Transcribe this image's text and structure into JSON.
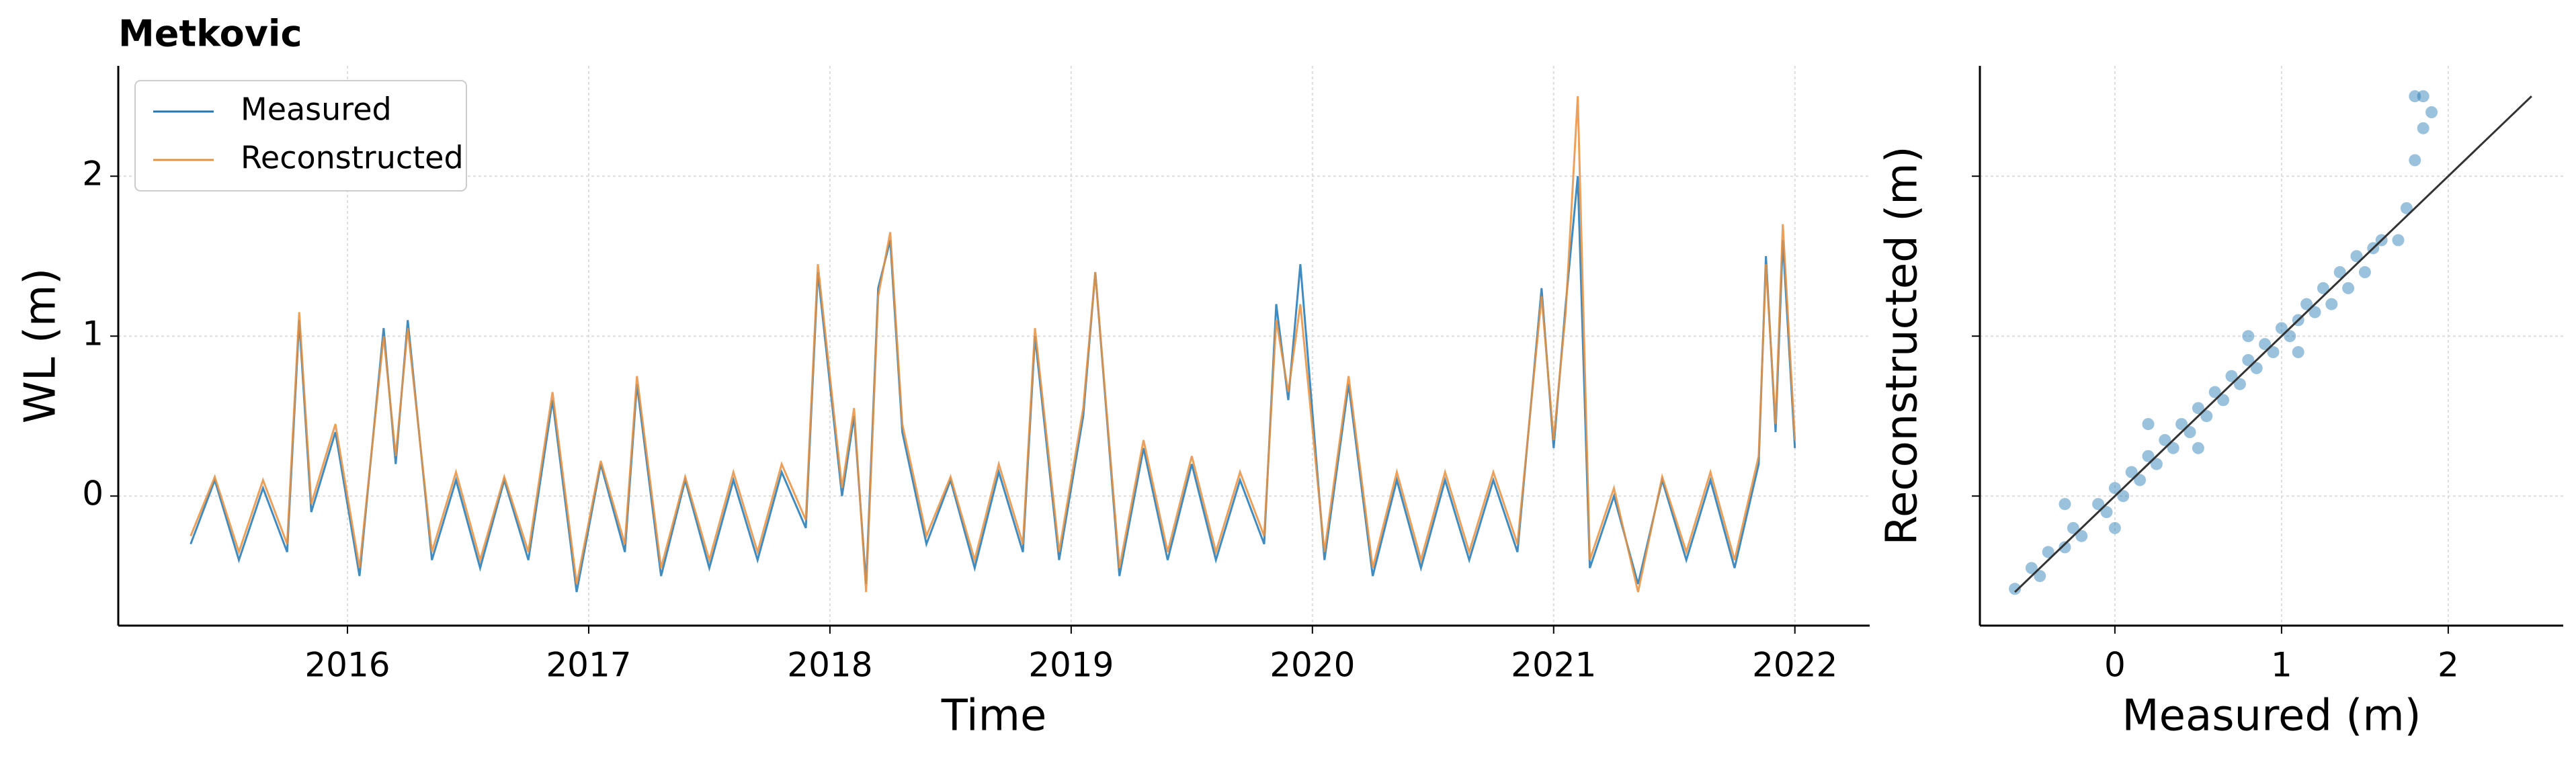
{
  "chart_data": [
    {
      "type": "line",
      "title": "Metkovic",
      "xlabel": "Time",
      "ylabel": "WL (m)",
      "x": [
        2015.35,
        2015.45,
        2015.55,
        2015.65,
        2015.75,
        2015.8,
        2015.85,
        2015.95,
        2016.05,
        2016.15,
        2016.2,
        2016.25,
        2016.35,
        2016.45,
        2016.55,
        2016.65,
        2016.75,
        2016.85,
        2016.95,
        2017.05,
        2017.15,
        2017.2,
        2017.3,
        2017.4,
        2017.5,
        2017.6,
        2017.7,
        2017.8,
        2017.9,
        2017.95,
        2018.05,
        2018.1,
        2018.15,
        2018.2,
        2018.25,
        2018.3,
        2018.4,
        2018.5,
        2018.6,
        2018.7,
        2018.8,
        2018.85,
        2018.95,
        2019.05,
        2019.1,
        2019.2,
        2019.3,
        2019.4,
        2019.5,
        2019.6,
        2019.7,
        2019.8,
        2019.85,
        2019.9,
        2019.95,
        2020.05,
        2020.15,
        2020.25,
        2020.35,
        2020.45,
        2020.55,
        2020.65,
        2020.75,
        2020.85,
        2020.95,
        2021.0,
        2021.05,
        2021.1,
        2021.15,
        2021.25,
        2021.35,
        2021.45,
        2021.55,
        2021.65,
        2021.75,
        2021.85,
        2021.88,
        2021.92,
        2021.95,
        2022.0
      ],
      "series": [
        {
          "name": "Measured",
          "color": "#1f77b4",
          "values": [
            -0.3,
            0.1,
            -0.4,
            0.05,
            -0.35,
            1.1,
            -0.1,
            0.4,
            -0.5,
            1.05,
            0.2,
            1.1,
            -0.4,
            0.1,
            -0.45,
            0.1,
            -0.4,
            0.6,
            -0.6,
            0.2,
            -0.35,
            0.7,
            -0.5,
            0.1,
            -0.45,
            0.1,
            -0.4,
            0.15,
            -0.2,
            1.4,
            0.0,
            0.5,
            -0.55,
            1.3,
            1.6,
            0.4,
            -0.3,
            0.1,
            -0.45,
            0.15,
            -0.35,
            1.0,
            -0.4,
            0.5,
            1.4,
            -0.5,
            0.3,
            -0.4,
            0.2,
            -0.4,
            0.1,
            -0.3,
            1.2,
            0.6,
            1.45,
            -0.4,
            0.7,
            -0.5,
            0.1,
            -0.45,
            0.1,
            -0.4,
            0.1,
            -0.35,
            1.3,
            0.3,
            1.2,
            2.0,
            -0.45,
            0.0,
            -0.55,
            0.1,
            -0.4,
            0.1,
            -0.45,
            0.2,
            1.5,
            0.4,
            1.6,
            0.3
          ]
        },
        {
          "name": "Reconstructed",
          "color": "#e8913f",
          "values": [
            -0.25,
            0.12,
            -0.35,
            0.1,
            -0.3,
            1.15,
            -0.05,
            0.45,
            -0.45,
            1.0,
            0.25,
            1.05,
            -0.35,
            0.15,
            -0.4,
            0.12,
            -0.35,
            0.65,
            -0.55,
            0.22,
            -0.3,
            0.75,
            -0.45,
            0.12,
            -0.4,
            0.15,
            -0.35,
            0.2,
            -0.15,
            1.45,
            0.05,
            0.55,
            -0.6,
            1.25,
            1.65,
            0.45,
            -0.25,
            0.12,
            -0.4,
            0.2,
            -0.3,
            1.05,
            -0.35,
            0.55,
            1.4,
            -0.45,
            0.35,
            -0.35,
            0.25,
            -0.35,
            0.15,
            -0.25,
            1.1,
            0.65,
            1.2,
            -0.35,
            0.75,
            -0.45,
            0.15,
            -0.4,
            0.15,
            -0.35,
            0.15,
            -0.3,
            1.25,
            0.35,
            1.15,
            2.5,
            -0.4,
            0.05,
            -0.6,
            0.12,
            -0.35,
            0.15,
            -0.4,
            0.25,
            1.45,
            0.45,
            1.7,
            0.35
          ]
        }
      ],
      "xlim": [
        2015.05,
        2022.31
      ],
      "xticks": [
        2016,
        2017,
        2018,
        2019,
        2020,
        2021,
        2022
      ],
      "ylim": [
        -0.81,
        2.69
      ],
      "yticks": [
        0,
        1,
        2
      ],
      "grid": true,
      "legend": "upper left"
    },
    {
      "type": "scatter",
      "xlabel": "Measured (m)",
      "ylabel": "Reconstructed (m)",
      "color": "#1f77b4",
      "x": [
        -0.6,
        -0.5,
        -0.45,
        -0.4,
        -0.3,
        -0.25,
        -0.2,
        -0.1,
        -0.05,
        0,
        0.05,
        0.1,
        0.15,
        0.2,
        0.25,
        0.3,
        0.35,
        0.4,
        0.45,
        0.5,
        0.55,
        0.6,
        0.65,
        0.7,
        0.75,
        0.8,
        0.85,
        0.9,
        0.95,
        1.0,
        1.05,
        1.1,
        1.15,
        1.2,
        1.25,
        1.3,
        1.35,
        1.4,
        1.45,
        1.5,
        1.55,
        1.6,
        1.7,
        1.75,
        1.8,
        1.85,
        1.9,
        1.85,
        1.8,
        0.2,
        0.5,
        0.8,
        1.1,
        0.0,
        -0.3
      ],
      "values": [
        -0.58,
        -0.45,
        -0.5,
        -0.35,
        -0.32,
        -0.2,
        -0.25,
        -0.05,
        -0.1,
        0.05,
        0.0,
        0.15,
        0.1,
        0.25,
        0.2,
        0.35,
        0.3,
        0.45,
        0.4,
        0.55,
        0.5,
        0.65,
        0.6,
        0.75,
        0.7,
        0.85,
        0.8,
        0.95,
        0.9,
        1.05,
        1.0,
        1.1,
        1.2,
        1.15,
        1.3,
        1.2,
        1.4,
        1.3,
        1.5,
        1.4,
        1.55,
        1.6,
        1.6,
        1.8,
        2.1,
        2.3,
        2.4,
        2.5,
        2.5,
        0.45,
        0.3,
        1.0,
        0.9,
        -0.2,
        -0.05
      ],
      "xlim": [
        -0.81,
        2.69
      ],
      "xticks": [
        0,
        1,
        2
      ],
      "ylim": [
        -0.81,
        2.69
      ],
      "yticks": [
        0,
        1,
        2
      ],
      "grid": true
    }
  ]
}
